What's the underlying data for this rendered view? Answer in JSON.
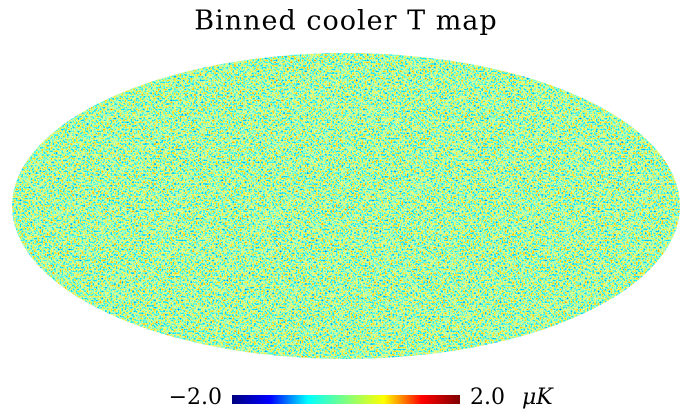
{
  "chart_data": {
    "type": "mollweide-map",
    "title": "Binned cooler T map",
    "colorbar": {
      "vlim": [
        -2,
        2
      ],
      "ticks": [
        {
          "value": -2,
          "label": "−2.0"
        },
        {
          "value": 2,
          "label": "2.0"
        }
      ],
      "unit": "μK",
      "colormap": [
        "#00007f",
        "#0000ff",
        "#00ffff",
        "#7fff7f",
        "#ffff00",
        "#ff0000",
        "#7f0000"
      ]
    }
  }
}
